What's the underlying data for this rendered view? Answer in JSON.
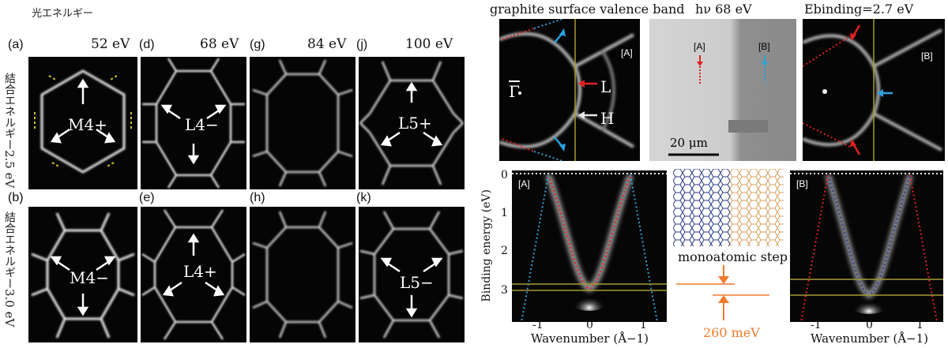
{
  "left": {
    "header_photon": "光エネルギー",
    "row_labels": [
      {
        "jp": "結合エネルギー",
        "value": "2.5 eV"
      },
      {
        "jp": "結合エネルギー",
        "value": "3.0 eV"
      }
    ],
    "energies": [
      "52 eV",
      "68 eV",
      "84 eV",
      "100 eV"
    ],
    "panel_letters_top": [
      "(a)",
      "(d)",
      "(g)",
      "(j)"
    ],
    "panel_letters_bottom": [
      "(b)",
      "(e)",
      "(h)",
      "(k)"
    ],
    "state_labels": {
      "a": "M4+",
      "d": "L4−",
      "j": "L5+",
      "b": "M4−",
      "e": "L4+",
      "k": "L5−"
    }
  },
  "right": {
    "title": "graphite surface valence band",
    "hv": "hν 68 eV",
    "ebinding": "Ebinding=2.7 eV",
    "marker_A": "[A]",
    "marker_B": "[B]",
    "gamma": "Γ",
    "L": "L",
    "H": "H",
    "scale": "20 μm",
    "step_label": "monoatomic step",
    "meV": "260 meV",
    "ylabel": "Binding energy (eV)",
    "xlabel": "Wavenumber (Å−1)",
    "yticks": [
      "0",
      "1",
      "2",
      "3"
    ],
    "xticks": [
      "-1",
      "0",
      "1"
    ]
  },
  "colors": {
    "yellow": "#d6c32a",
    "red": "#e02020",
    "blue": "#2aa0e0",
    "orange": "#f07a2a",
    "olive": "#a69a30"
  }
}
